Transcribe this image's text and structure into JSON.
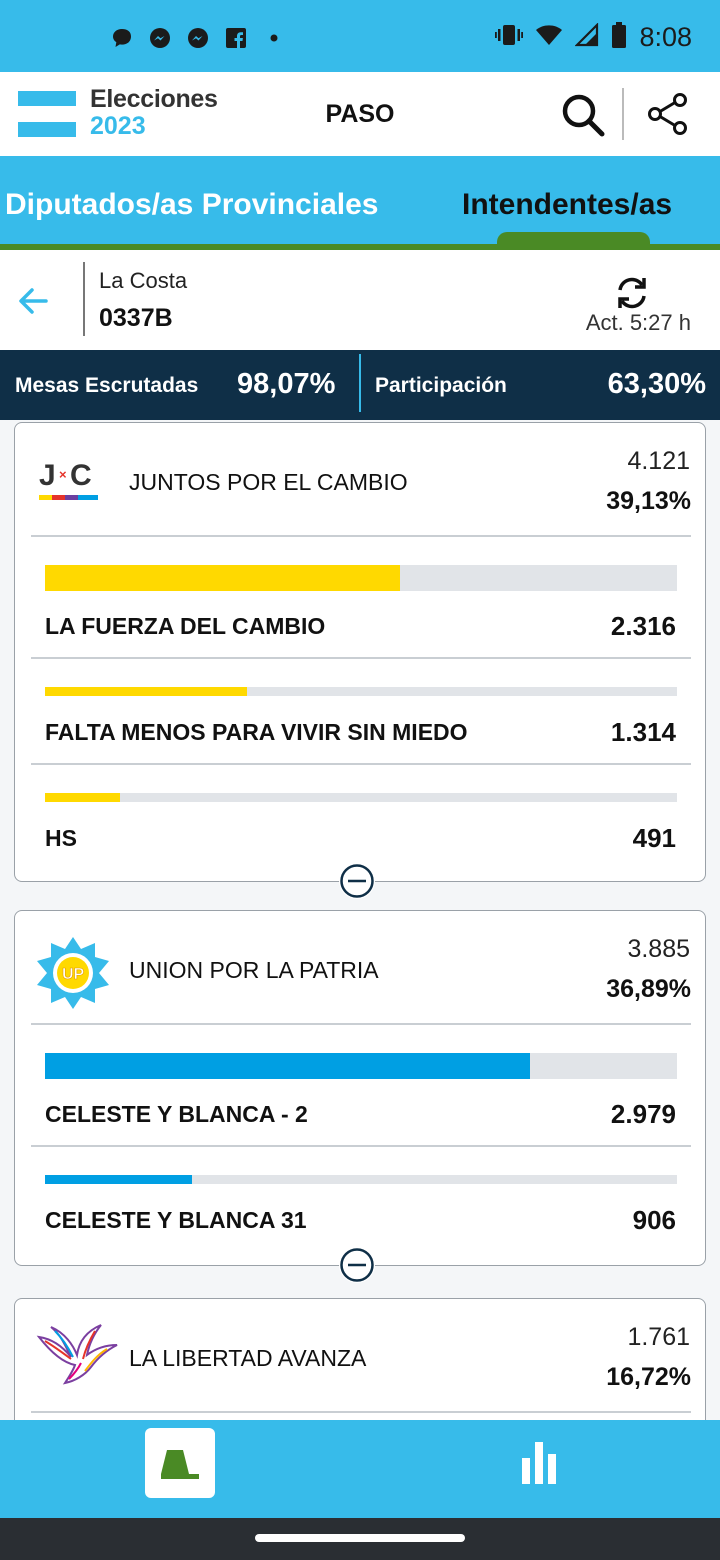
{
  "status_bar": {
    "time": "8:08",
    "left_icons": [
      "chat-bubble-icon",
      "messenger-icon",
      "messenger-icon",
      "facebook-icon",
      "dot-icon"
    ],
    "right_icons": [
      "vibrate-icon",
      "wifi-icon",
      "signal-icon",
      "battery-icon"
    ]
  },
  "header": {
    "logo_line1": "Elecciones",
    "logo_line2": "2023",
    "title": "PASO"
  },
  "tabs": [
    {
      "label": "Diputados/as Provinciales",
      "active": false
    },
    {
      "label": "Intendentes/as",
      "active": true
    }
  ],
  "location": {
    "name": "La Costa",
    "code": "0337B",
    "updated": "Act. 5:27 h"
  },
  "stats": {
    "mesas_label": "Mesas Escrutadas",
    "mesas_value": "98,07%",
    "participacion_label": "Participación",
    "participacion_value": "63,30%"
  },
  "parties": [
    {
      "name": "JUNTOS POR EL CAMBIO",
      "votes": "4.121",
      "percent": "39,13%",
      "logo_text": "J×C",
      "color": "#ffd900",
      "lists": [
        {
          "name": "LA FUERZA DEL CAMBIO",
          "votes": "2.316",
          "fill": 0.562
        },
        {
          "name": "FALTA MENOS PARA VIVIR SIN MIEDO",
          "votes": "1.314",
          "fill": 0.319
        },
        {
          "name": "HS",
          "votes": "491",
          "fill": 0.119
        }
      ]
    },
    {
      "name": "UNION POR LA PATRIA",
      "votes": "3.885",
      "percent": "36,89%",
      "logo_text": "UP",
      "color": "#009fe3",
      "lists": [
        {
          "name": "CELESTE Y BLANCA - 2",
          "votes": "2.979",
          "fill": 0.767
        },
        {
          "name": "CELESTE Y BLANCA 31",
          "votes": "906",
          "fill": 0.233
        }
      ]
    },
    {
      "name": "LA LIBERTAD AVANZA",
      "votes": "1.761",
      "percent": "16,72%",
      "color": "#7b3fa0",
      "lists": []
    }
  ],
  "bottom_nav": [
    "ballot-icon",
    "bar-chart-icon"
  ]
}
